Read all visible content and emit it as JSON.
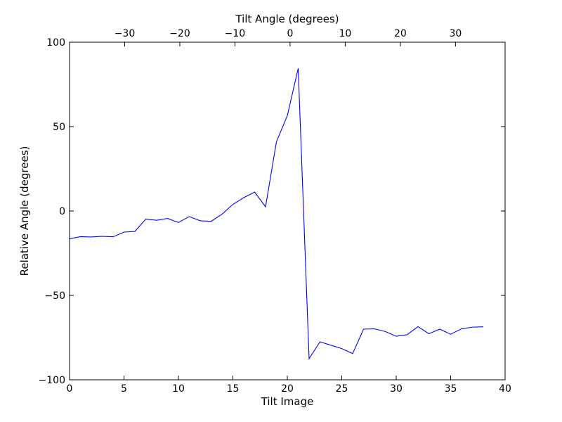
{
  "chart_data": {
    "type": "line",
    "title": "",
    "xlabel": "Tilt Image",
    "ylabel": "Relative Angle (degrees)",
    "top_xlabel": "Tilt Angle (degrees)",
    "xlim": [
      0,
      40
    ],
    "ylim": [
      -100,
      100
    ],
    "top_xlim": [
      -40,
      39
    ],
    "x_ticks": [
      0,
      5,
      10,
      15,
      20,
      25,
      30,
      35,
      40
    ],
    "y_ticks": [
      -100,
      -50,
      0,
      50,
      100
    ],
    "top_ticks": [
      -30,
      -20,
      -10,
      0,
      10,
      20,
      30
    ],
    "x_tick_labels": [
      "0",
      "5",
      "10",
      "15",
      "20",
      "25",
      "30",
      "35",
      "40"
    ],
    "y_tick_labels": [
      "−100",
      "−50",
      "0",
      "50",
      "100"
    ],
    "top_tick_labels": [
      "−30",
      "−20",
      "−10",
      "0",
      "10",
      "20",
      "30"
    ],
    "grid": false,
    "line_color": "#0000ff",
    "series": [
      {
        "x": [
          0,
          1,
          2,
          3,
          4,
          5,
          6,
          7,
          8,
          9,
          10,
          11,
          12,
          13,
          14,
          15,
          16,
          17,
          18,
          19,
          20,
          21,
          22,
          23,
          24,
          25,
          26,
          27,
          28,
          29,
          30,
          31,
          32,
          33,
          34,
          35,
          36,
          37,
          38
        ],
        "values": [
          -16.5,
          -15.2,
          -15.4,
          -15.0,
          -15.3,
          -12.5,
          -12.1,
          -4.8,
          -5.5,
          -4.4,
          -6.8,
          -3.3,
          -5.8,
          -6.1,
          -1.9,
          3.9,
          7.9,
          11.2,
          2.5,
          41.0,
          56.5,
          84.5,
          -87.5,
          -77.5,
          -79.5,
          -81.5,
          -84.5,
          -70.0,
          -69.8,
          -71.4,
          -74.2,
          -73.3,
          -68.5,
          -72.7,
          -70.0,
          -73.0,
          -69.8,
          -68.8,
          -68.6
        ]
      }
    ]
  }
}
